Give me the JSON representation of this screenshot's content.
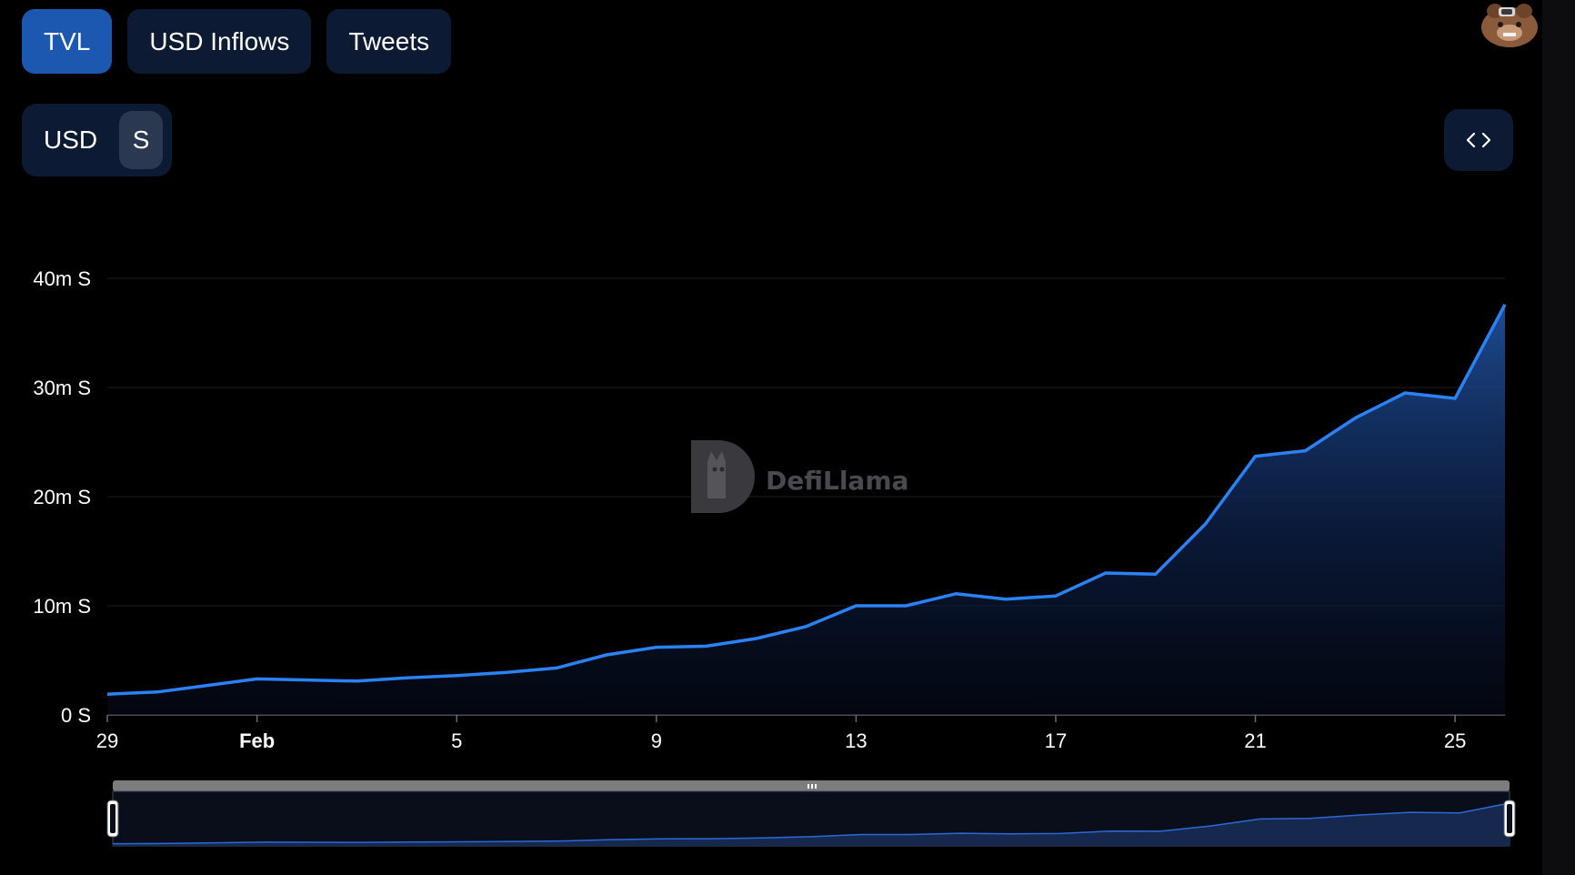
{
  "tabs": [
    {
      "label": "TVL",
      "active": true
    },
    {
      "label": "USD Inflows",
      "active": false
    },
    {
      "label": "Tweets",
      "active": false
    }
  ],
  "unit_toggle": {
    "options": [
      "USD",
      "S"
    ],
    "selected": "S"
  },
  "embed_button": {
    "icon": "code-embed-icon"
  },
  "avatar": {
    "icon": "llama-avatar-icon"
  },
  "watermark": {
    "text": "DefiLlama"
  },
  "colors": {
    "line": "#2a82f5",
    "area_top": "#1f4f99",
    "grid": "#1e1e24",
    "tab_active": "#1d58b0",
    "tab_bg": "#0c1a34"
  },
  "chart_data": {
    "type": "area",
    "title": "",
    "xlabel": "",
    "ylabel": "",
    "x": [
      "2025-01-29",
      "2025-01-30",
      "2025-01-31",
      "2025-02-01",
      "2025-02-02",
      "2025-02-03",
      "2025-02-04",
      "2025-02-05",
      "2025-02-06",
      "2025-02-07",
      "2025-02-08",
      "2025-02-09",
      "2025-02-10",
      "2025-02-11",
      "2025-02-12",
      "2025-02-13",
      "2025-02-14",
      "2025-02-15",
      "2025-02-16",
      "2025-02-17",
      "2025-02-18",
      "2025-02-19",
      "2025-02-20",
      "2025-02-21",
      "2025-02-22",
      "2025-02-23",
      "2025-02-24",
      "2025-02-25",
      "2025-02-26"
    ],
    "series": [
      {
        "values": [
          1.9,
          2.1,
          2.7,
          3.3,
          3.2,
          3.1,
          3.4,
          3.6,
          3.9,
          4.3,
          5.5,
          6.2,
          6.3,
          7.0,
          8.1,
          10.0,
          10.0,
          11.1,
          10.6,
          10.9,
          13.0,
          12.9,
          17.5,
          23.7,
          24.2,
          27.2,
          29.5,
          29.0,
          37.6
        ]
      }
    ],
    "value_unit": "m S",
    "ylim": [
      0,
      40
    ],
    "yticks": [
      0,
      10,
      20,
      30,
      40
    ],
    "ytick_labels": [
      "0 S",
      "10m S",
      "20m S",
      "30m S",
      "40m S"
    ],
    "xtick_labels": [
      {
        "date": "2025-01-29",
        "label": "29",
        "bold": false
      },
      {
        "date": "2025-02-01",
        "label": "Feb",
        "bold": true
      },
      {
        "date": "2025-02-05",
        "label": "5",
        "bold": false
      },
      {
        "date": "2025-02-09",
        "label": "9",
        "bold": false
      },
      {
        "date": "2025-02-13",
        "label": "13",
        "bold": false
      },
      {
        "date": "2025-02-17",
        "label": "17",
        "bold": false
      },
      {
        "date": "2025-02-21",
        "label": "21",
        "bold": false
      },
      {
        "date": "2025-02-25",
        "label": "25",
        "bold": false
      }
    ],
    "grid": true,
    "zoom_range": [
      0,
      100
    ]
  }
}
